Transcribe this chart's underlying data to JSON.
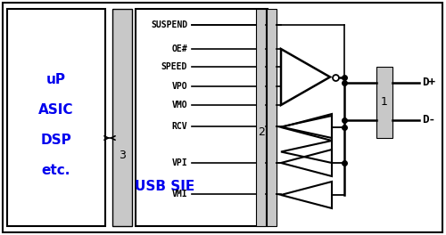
{
  "bg": "#ffffff",
  "black": "#000000",
  "blue": "#0000ee",
  "gray": "#c8c8c8",
  "up_labels": [
    "uP",
    "ASIC",
    "DSP",
    "etc."
  ],
  "sig_labels": [
    "SUSPEND",
    "OE#",
    "SPEED",
    "VPO",
    "VMO",
    "RCV",
    "VPI",
    "VMI"
  ],
  "d_plus": "D+",
  "d_minus": "D-",
  "lbl1": "1",
  "lbl2": "2",
  "lbl3": "3",
  "sie_label": "USB SIE"
}
